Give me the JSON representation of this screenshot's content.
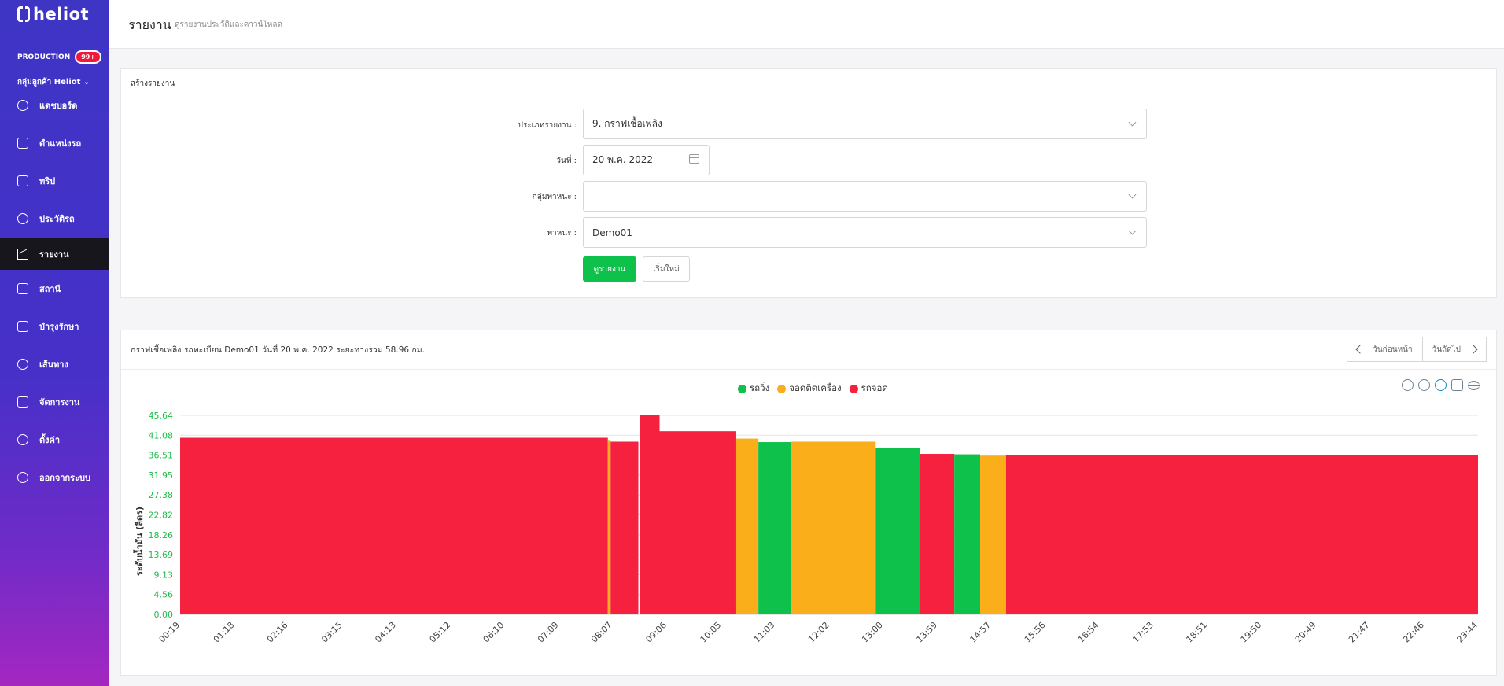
{
  "sidebar": {
    "logo": "heliot",
    "env": "PRODUCTION",
    "badge": "99+",
    "group": "กลุ่มลูกค้า Heliot",
    "items": [
      {
        "label": "แดชบอร์ด",
        "icon": "info-icon"
      },
      {
        "label": "ตำแหน่งรถ",
        "icon": "location-icon"
      },
      {
        "label": "ทริป",
        "icon": "trip-icon"
      },
      {
        "label": "ประวัติรถ",
        "icon": "history-icon"
      },
      {
        "label": "รายงาน",
        "icon": "chart-icon"
      },
      {
        "label": "สถานี",
        "icon": "station-icon"
      },
      {
        "label": "บำรุงรักษา",
        "icon": "tools-icon"
      },
      {
        "label": "เส้นทาง",
        "icon": "route-icon"
      },
      {
        "label": "จัดการงาน",
        "icon": "task-icon"
      },
      {
        "label": "ตั้งค่า",
        "icon": "gear-icon"
      },
      {
        "label": "ออกจากระบบ",
        "icon": "logout-icon"
      }
    ]
  },
  "header": {
    "title": "รายงาน",
    "subtitle": "ดูรายงานประวัติและดาวน์โหลด"
  },
  "form": {
    "card_title": "สร้างรายงาน",
    "report_type_label": "ประเภทรายงาน :",
    "report_type_value": "9. กราฟเชื้อเพลิง",
    "date_label": "วันที่ :",
    "date_value": "20 พ.ค. 2022",
    "vehicle_group_label": "กลุ่มพาหนะ :",
    "vehicle_group_value": "",
    "vehicle_label": "พาหนะ :",
    "vehicle_value": "Demo01",
    "view_button": "ดูรายงาน",
    "reset_button": "เริ่มใหม่"
  },
  "report": {
    "title": "กราฟเชื้อเพลิง รถทะเบียน Demo01 วันที่ 20 พ.ค. 2022 ระยะทางรวม 58.96 กม.",
    "prev_day": "วันก่อนหน้า",
    "next_day": "วันถัดไป"
  },
  "chart_data": {
    "type": "area",
    "ylabel": "ระดับน้ำมัน (ลิตร)",
    "xlabel": "",
    "ylim": [
      0,
      45.64
    ],
    "y_ticks": [
      "0.00",
      "4.56",
      "9.13",
      "13.69",
      "18.26",
      "22.82",
      "27.38",
      "31.95",
      "36.51",
      "41.08",
      "45.64"
    ],
    "x_ticks": [
      "00:19",
      "01:18",
      "02:16",
      "03:15",
      "04:13",
      "05:12",
      "06:10",
      "07:09",
      "08:07",
      "09:06",
      "10:05",
      "11:03",
      "12:02",
      "13:00",
      "13:59",
      "14:57",
      "15:56",
      "16:54",
      "17:53",
      "18:51",
      "19:50",
      "20:49",
      "21:47",
      "22:46",
      "23:44"
    ],
    "legend": [
      {
        "name": "รถวิ่ง",
        "color": "#0ec14a"
      },
      {
        "name": "จอดติดเครื่อง",
        "color": "#f9ae1a"
      },
      {
        "name": "รถจอด",
        "color": "#f5213f"
      }
    ],
    "segments": [
      {
        "state": "รถจอด",
        "start": "00:19",
        "end": "08:02",
        "level": 40.5
      },
      {
        "state": "จอดติดเครื่อง",
        "start": "08:02",
        "end": "08:05",
        "level": 40.0
      },
      {
        "state": "รถจอด",
        "start": "08:05",
        "end": "08:35",
        "level": 39.6
      },
      {
        "state": "รถจอด",
        "start": "08:37",
        "end": "08:58",
        "level": 45.64
      },
      {
        "state": "รถจอด",
        "start": "08:58",
        "end": "10:21",
        "level": 42.0
      },
      {
        "state": "จอดติดเครื่อง",
        "start": "10:21",
        "end": "10:45",
        "level": 40.3
      },
      {
        "state": "รถวิ่ง",
        "start": "10:45",
        "end": "11:20",
        "level": 39.5
      },
      {
        "state": "จอดติดเครื่อง",
        "start": "11:20",
        "end": "12:52",
        "level": 39.6
      },
      {
        "state": "รถวิ่ง",
        "start": "12:52",
        "end": "13:40",
        "level": 38.2
      },
      {
        "state": "รถจอด",
        "start": "13:40",
        "end": "14:17",
        "level": 36.8
      },
      {
        "state": "รถวิ่ง",
        "start": "14:17",
        "end": "14:45",
        "level": 36.7
      },
      {
        "state": "จอดติดเครื่อง",
        "start": "14:45",
        "end": "15:13",
        "level": 36.4
      },
      {
        "state": "รถจอด",
        "start": "15:13",
        "end": "23:44",
        "level": 36.5
      }
    ]
  }
}
